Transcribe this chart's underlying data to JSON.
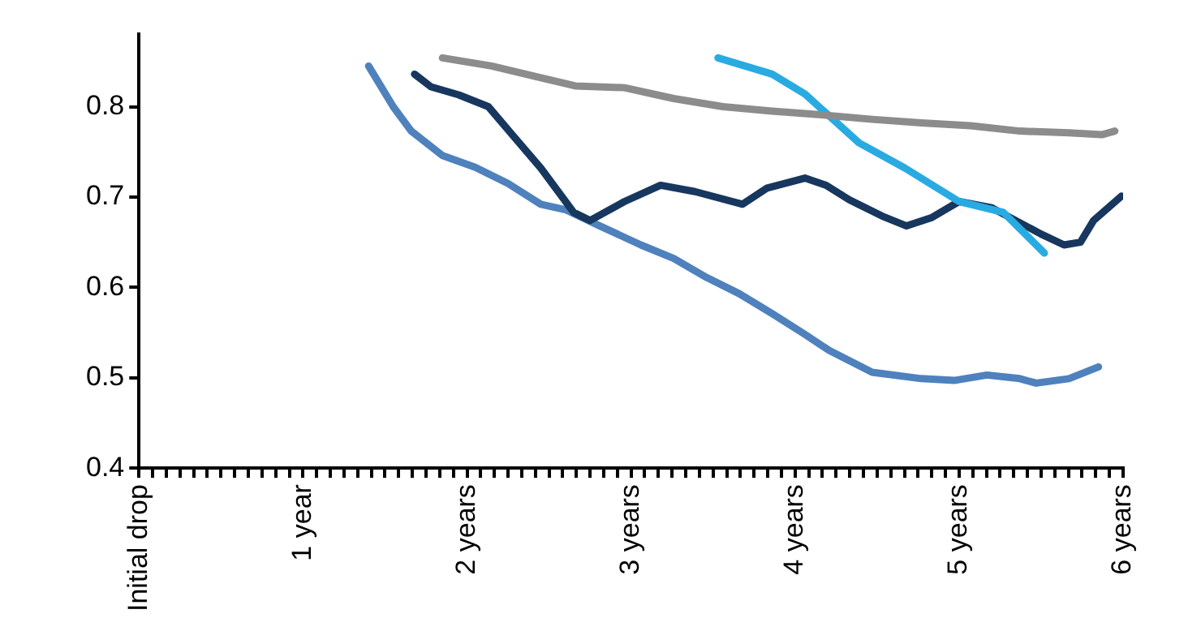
{
  "chart_data": {
    "type": "line",
    "xlim": [
      0,
      6
    ],
    "ylim": [
      0.4,
      0.88
    ],
    "yticks": [
      0.4,
      0.5,
      0.6,
      0.7,
      0.8
    ],
    "xticks": [
      {
        "value": 0,
        "label": "Initial drop"
      },
      {
        "value": 0.0833,
        "label": null
      },
      {
        "value": 0.1667,
        "label": null
      },
      {
        "value": 0.25,
        "label": null
      },
      {
        "value": 0.3333,
        "label": null
      },
      {
        "value": 0.4167,
        "label": null
      },
      {
        "value": 0.5,
        "label": null
      },
      {
        "value": 0.5833,
        "label": null
      },
      {
        "value": 0.6667,
        "label": null
      },
      {
        "value": 0.75,
        "label": null
      },
      {
        "value": 0.8333,
        "label": null
      },
      {
        "value": 0.9167,
        "label": null
      },
      {
        "value": 1,
        "label": "1 year"
      },
      {
        "value": 1.0833,
        "label": null
      },
      {
        "value": 1.1667,
        "label": null
      },
      {
        "value": 1.25,
        "label": null
      },
      {
        "value": 1.3333,
        "label": null
      },
      {
        "value": 1.4167,
        "label": null
      },
      {
        "value": 1.5,
        "label": null
      },
      {
        "value": 1.5833,
        "label": null
      },
      {
        "value": 1.6667,
        "label": null
      },
      {
        "value": 1.75,
        "label": null
      },
      {
        "value": 1.8333,
        "label": null
      },
      {
        "value": 1.9167,
        "label": null
      },
      {
        "value": 2,
        "label": "2 years"
      },
      {
        "value": 2.0833,
        "label": null
      },
      {
        "value": 2.1667,
        "label": null
      },
      {
        "value": 2.25,
        "label": null
      },
      {
        "value": 2.3333,
        "label": null
      },
      {
        "value": 2.4167,
        "label": null
      },
      {
        "value": 2.5,
        "label": null
      },
      {
        "value": 2.5833,
        "label": null
      },
      {
        "value": 2.6667,
        "label": null
      },
      {
        "value": 2.75,
        "label": null
      },
      {
        "value": 2.8333,
        "label": null
      },
      {
        "value": 2.9167,
        "label": null
      },
      {
        "value": 3,
        "label": "3 years"
      },
      {
        "value": 3.0833,
        "label": null
      },
      {
        "value": 3.1667,
        "label": null
      },
      {
        "value": 3.25,
        "label": null
      },
      {
        "value": 3.3333,
        "label": null
      },
      {
        "value": 3.4167,
        "label": null
      },
      {
        "value": 3.5,
        "label": null
      },
      {
        "value": 3.5833,
        "label": null
      },
      {
        "value": 3.6667,
        "label": null
      },
      {
        "value": 3.75,
        "label": null
      },
      {
        "value": 3.8333,
        "label": null
      },
      {
        "value": 3.9167,
        "label": null
      },
      {
        "value": 4,
        "label": "4 years"
      },
      {
        "value": 4.0833,
        "label": null
      },
      {
        "value": 4.1667,
        "label": null
      },
      {
        "value": 4.25,
        "label": null
      },
      {
        "value": 4.3333,
        "label": null
      },
      {
        "value": 4.4167,
        "label": null
      },
      {
        "value": 4.5,
        "label": null
      },
      {
        "value": 4.5833,
        "label": null
      },
      {
        "value": 4.6667,
        "label": null
      },
      {
        "value": 4.75,
        "label": null
      },
      {
        "value": 4.8333,
        "label": null
      },
      {
        "value": 4.9167,
        "label": null
      },
      {
        "value": 5,
        "label": "5 years"
      },
      {
        "value": 5.0833,
        "label": null
      },
      {
        "value": 5.1667,
        "label": null
      },
      {
        "value": 5.25,
        "label": null
      },
      {
        "value": 5.3333,
        "label": null
      },
      {
        "value": 5.4167,
        "label": null
      },
      {
        "value": 5.5,
        "label": null
      },
      {
        "value": 5.5833,
        "label": null
      },
      {
        "value": 5.6667,
        "label": null
      },
      {
        "value": 5.75,
        "label": null
      },
      {
        "value": 5.8333,
        "label": null
      },
      {
        "value": 5.9167,
        "label": null
      },
      {
        "value": 6,
        "label": "6 years"
      }
    ],
    "series": [
      {
        "color": "#8c8c8c",
        "x": [
          1.85,
          2.15,
          2.45,
          2.66,
          2.96,
          3.26,
          3.56,
          3.86,
          4.16,
          4.47,
          4.77,
          5.07,
          5.37,
          5.67,
          5.87,
          5.95
        ],
        "values": [
          0.854,
          0.845,
          0.832,
          0.823,
          0.821,
          0.809,
          0.8,
          0.795,
          0.791,
          0.786,
          0.782,
          0.779,
          0.773,
          0.771,
          0.769,
          0.773
        ]
      },
      {
        "color": "#29abe2",
        "x": [
          3.53,
          3.86,
          4.06,
          4.39,
          4.67,
          5.0,
          5.27,
          5.52
        ],
        "values": [
          0.854,
          0.836,
          0.814,
          0.76,
          0.732,
          0.695,
          0.683,
          0.638
        ]
      },
      {
        "color": "#17375e",
        "x": [
          1.68,
          1.78,
          1.95,
          2.13,
          2.28,
          2.45,
          2.65,
          2.75,
          2.96,
          3.18,
          3.39,
          3.68,
          3.83,
          4.06,
          4.19,
          4.33,
          4.53,
          4.68,
          4.83,
          5.0,
          5.2,
          5.5,
          5.64,
          5.74,
          5.82,
          5.99
        ],
        "values": [
          0.836,
          0.822,
          0.813,
          0.8,
          0.768,
          0.732,
          0.683,
          0.674,
          0.695,
          0.713,
          0.706,
          0.692,
          0.71,
          0.721,
          0.713,
          0.697,
          0.679,
          0.668,
          0.677,
          0.695,
          0.688,
          0.659,
          0.647,
          0.65,
          0.674,
          0.701
        ]
      },
      {
        "color": "#4f81bd",
        "x": [
          1.4,
          1.55,
          1.66,
          1.85,
          2.05,
          2.25,
          2.45,
          2.6,
          2.81,
          3.06,
          3.26,
          3.46,
          3.66,
          3.86,
          4.06,
          4.21,
          4.47,
          4.77,
          4.97,
          5.17,
          5.37,
          5.47,
          5.67,
          5.85
        ],
        "values": [
          0.845,
          0.8,
          0.773,
          0.746,
          0.733,
          0.715,
          0.692,
          0.686,
          0.668,
          0.647,
          0.632,
          0.611,
          0.593,
          0.571,
          0.548,
          0.53,
          0.506,
          0.499,
          0.497,
          0.503,
          0.499,
          0.494,
          0.499,
          0.512
        ]
      }
    ]
  }
}
